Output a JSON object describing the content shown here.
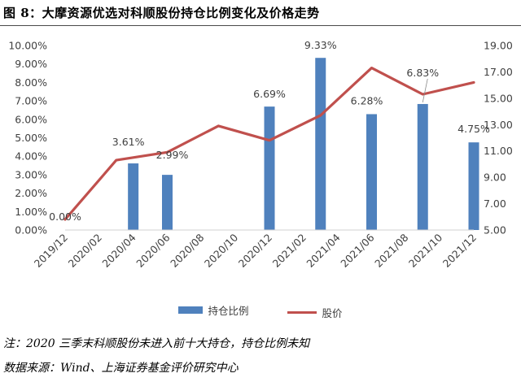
{
  "figure_title": "图 8：大摩资源优选对科顺股份持仓比例变化及价格走势",
  "chart_data": {
    "type": "bar+line",
    "x": [
      "2019/12",
      "2020/02",
      "2020/04",
      "2020/06",
      "2020/08",
      "2020/10",
      "2020/12",
      "2021/02",
      "2021/04",
      "2021/06",
      "2021/08",
      "2021/10",
      "2021/12"
    ],
    "left_axis": {
      "ticks": [
        "0.00%",
        "1.00%",
        "2.00%",
        "3.00%",
        "4.00%",
        "5.00%",
        "6.00%",
        "7.00%",
        "8.00%",
        "9.00%",
        "10.00%"
      ],
      "range": [
        0,
        10
      ]
    },
    "right_axis": {
      "ticks": [
        "5.00",
        "7.00",
        "9.00",
        "11.00",
        "13.00",
        "15.00",
        "17.00",
        "19.00"
      ],
      "range": [
        5,
        19
      ]
    },
    "series": [
      {
        "name": "持仓比例",
        "type": "bar",
        "axis": "left",
        "color": "#4f81bd",
        "points": [
          {
            "x": "2019/12",
            "y": 0.0,
            "label": "0.00%"
          },
          {
            "x": "2020/04",
            "y": 3.61,
            "label": "3.61%"
          },
          {
            "x": "2020/06",
            "y": 2.99,
            "label": "2.99%"
          },
          {
            "x": "2020/12",
            "y": 6.69,
            "label": "6.69%"
          },
          {
            "x": "2021/03",
            "y": 9.33,
            "label": "9.33%"
          },
          {
            "x": "2021/06",
            "y": 6.28,
            "label": "6.28%"
          },
          {
            "x": "2021/09",
            "y": 6.83,
            "label": "6.83%"
          },
          {
            "x": "2021/12",
            "y": 4.75,
            "label": "4.75%"
          }
        ]
      },
      {
        "name": "股价",
        "type": "line",
        "axis": "right",
        "color": "#c0504d",
        "points": [
          {
            "x": "2019/12",
            "y": 5.8
          },
          {
            "x": "2020/03",
            "y": 10.3
          },
          {
            "x": "2020/06",
            "y": 10.9
          },
          {
            "x": "2020/09",
            "y": 12.9
          },
          {
            "x": "2020/12",
            "y": 11.8
          },
          {
            "x": "2021/03",
            "y": 13.7
          },
          {
            "x": "2021/06",
            "y": 17.3
          },
          {
            "x": "2021/09",
            "y": 15.3
          },
          {
            "x": "2021/12",
            "y": 16.2
          }
        ]
      }
    ],
    "grid": false,
    "legend": "bottom"
  },
  "notes": [
    "注：2020 三季末科顺股份未进入前十大持仓，持仓比例未知",
    "数据来源：Wind、上海证券基金评价研究中心"
  ]
}
